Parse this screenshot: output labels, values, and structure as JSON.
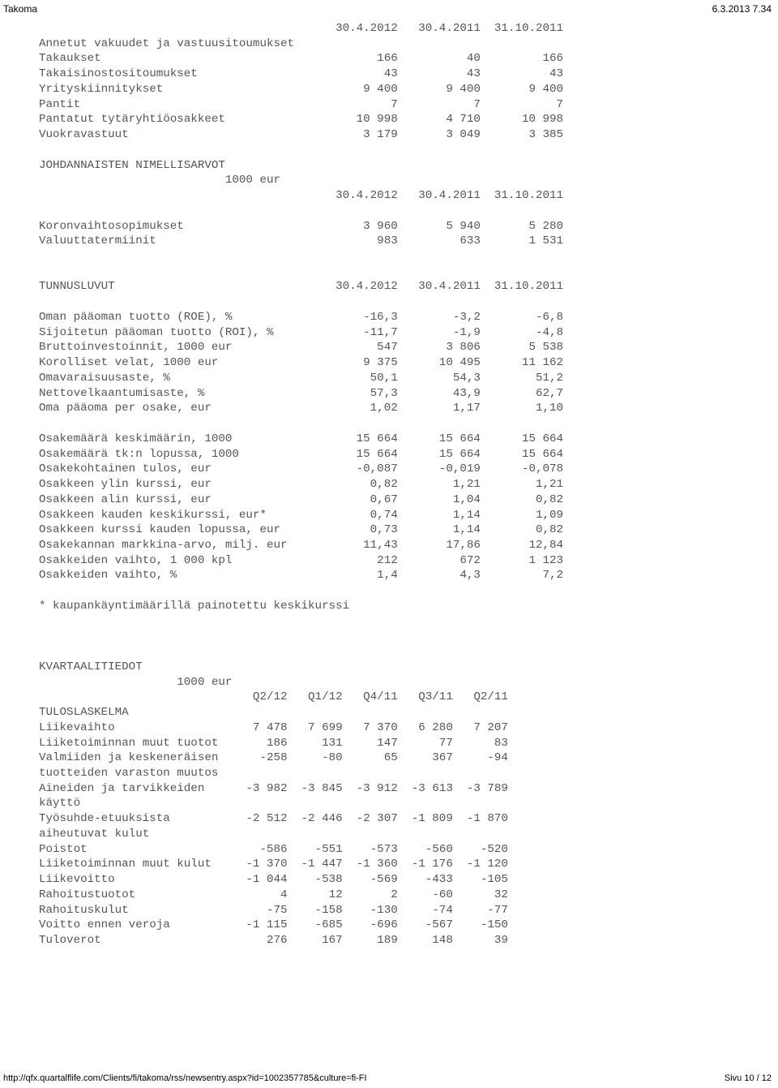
{
  "header": {
    "left": "Takoma",
    "right": "6.3.2013 7.34"
  },
  "footer": {
    "url": "http://qfx.quartalflife.com/Clients/fi/takoma/rss/newsentry.aspx?id=1002357785&culture=fi-FI",
    "page": "Sivu 10 / 12"
  },
  "section1": {
    "date_cols": [
      "30.4.2012",
      "30.4.2011",
      "31.10.2011"
    ],
    "heading": "Annetut vakuudet ja vastuusitoumukset",
    "rows": [
      {
        "label": "Takaukset",
        "v": [
          "166",
          "40",
          "166"
        ]
      },
      {
        "label": "Takaisinostositoumukset",
        "v": [
          "43",
          "43",
          "43"
        ]
      },
      {
        "label": "Yrityskiinnitykset",
        "v": [
          "9 400",
          "9 400",
          "9 400"
        ]
      },
      {
        "label": "Pantit",
        "v": [
          "7",
          "7",
          "7"
        ]
      },
      {
        "label": "Pantatut tytäryhtiöosakkeet",
        "v": [
          "10 998",
          "4 710",
          "10 998"
        ]
      },
      {
        "label": "Vuokravastuut",
        "v": [
          "3 179",
          "3 049",
          "3 385"
        ]
      }
    ]
  },
  "section2": {
    "heading": "JOHDANNAISTEN NIMELLISARVOT",
    "unit": "1000 eur",
    "date_cols": [
      "30.4.2012",
      "30.4.2011",
      "31.10.2011"
    ],
    "rows": [
      {
        "label": "Koronvaihtosopimukset",
        "v": [
          "3 960",
          "5 940",
          "5 280"
        ]
      },
      {
        "label": "Valuuttatermiinit",
        "v": [
          "983",
          "633",
          "1 531"
        ]
      }
    ]
  },
  "section3": {
    "heading": "TUNNUSLUVUT",
    "date_cols": [
      "30.4.2012",
      "30.4.2011",
      "31.10.2011"
    ],
    "rowsA": [
      {
        "label": "Oman pääoman tuotto (ROE), %",
        "v": [
          "-16,3",
          "-3,2",
          "-6,8"
        ]
      },
      {
        "label": "Sijoitetun pääoman tuotto (ROI), %",
        "v": [
          "-11,7",
          "-1,9",
          "-4,8"
        ]
      },
      {
        "label": "Bruttoinvestoinnit, 1000 eur",
        "v": [
          "547",
          "3 806",
          "5 538"
        ]
      },
      {
        "label": "Korolliset velat, 1000 eur",
        "v": [
          "9 375",
          "10 495",
          "11 162"
        ]
      },
      {
        "label": "Omavaraisuusaste, %",
        "v": [
          "50,1",
          "54,3",
          "51,2"
        ]
      },
      {
        "label": "Nettovelkaantumisaste, %",
        "v": [
          "57,3",
          "43,9",
          "62,7"
        ]
      },
      {
        "label": "Oma pääoma per osake, eur",
        "v": [
          "1,02",
          "1,17",
          "1,10"
        ]
      }
    ],
    "rowsB": [
      {
        "label": "Osakemäärä keskimäärin, 1000",
        "v": [
          "15 664",
          "15 664",
          "15 664"
        ]
      },
      {
        "label": "Osakemäärä tk:n lopussa, 1000",
        "v": [
          "15 664",
          "15 664",
          "15 664"
        ]
      },
      {
        "label": "Osakekohtainen tulos, eur",
        "v": [
          "-0,087",
          "-0,019",
          "-0,078"
        ]
      },
      {
        "label": "Osakkeen ylin kurssi, eur",
        "v": [
          "0,82",
          "1,21",
          "1,21"
        ]
      },
      {
        "label": "Osakkeen alin kurssi, eur",
        "v": [
          "0,67",
          "1,04",
          "0,82"
        ]
      },
      {
        "label": "Osakkeen kauden keskikurssi, eur*",
        "v": [
          "0,74",
          "1,14",
          "1,09"
        ]
      },
      {
        "label": "Osakkeen kurssi kauden lopussa, eur",
        "v": [
          "0,73",
          "1,14",
          "0,82"
        ]
      },
      {
        "label": "Osakekannan markkina-arvo, milj. eur",
        "v": [
          "11,43",
          "17,86",
          "12,84"
        ]
      },
      {
        "label": "Osakkeiden vaihto, 1 000 kpl",
        "v": [
          "212",
          "672",
          "1 123"
        ]
      },
      {
        "label": "Osakkeiden vaihto, %",
        "v": [
          "1,4",
          "4,3",
          "7,2"
        ]
      }
    ],
    "footnote": "* kaupankäyntimäärillä painotettu keskikurssi"
  },
  "section4": {
    "heading": "KVARTAALITIEDOT",
    "unit": "1000 eur",
    "cols": [
      "Q2/12",
      "Q1/12",
      "Q4/11",
      "Q3/11",
      "Q2/11"
    ],
    "subheading": "TULOSLASKELMA",
    "rows": [
      {
        "label": "Liikevaihto",
        "v": [
          "7 478",
          "7 699",
          "7 370",
          "6 280",
          "7 207"
        ]
      },
      {
        "label": "Liiketoiminnan muut tuotot",
        "v": [
          "186",
          "131",
          "147",
          "77",
          "83"
        ]
      },
      {
        "label": "Valmiiden ja keskeneräisen",
        "v": [
          "-258",
          "-80",
          "65",
          "367",
          "-94"
        ]
      },
      {
        "label2": "tuotteiden varaston muutos"
      },
      {
        "label": "Aineiden ja tarvikkeiden",
        "v": [
          "-3 982",
          "-3 845",
          "-3 912",
          "-3 613",
          "-3 789"
        ]
      },
      {
        "label2": "käyttö"
      },
      {
        "label": "Työsuhde-etuuksista",
        "v": [
          "-2 512",
          "-2 446",
          "-2 307",
          "-1 809",
          "-1 870"
        ]
      },
      {
        "label2": "aiheutuvat kulut"
      },
      {
        "label": "Poistot",
        "v": [
          "-586",
          "-551",
          "-573",
          "-560",
          "-520"
        ]
      },
      {
        "label": "Liiketoiminnan muut kulut",
        "v": [
          "-1 370",
          "-1 447",
          "-1 360",
          "-1 176",
          "-1 120"
        ]
      },
      {
        "label": "Liikevoitto",
        "v": [
          "-1 044",
          "-538",
          "-569",
          "-433",
          "-105"
        ]
      },
      {
        "label": "Rahoitustuotot",
        "v": [
          "4",
          "12",
          "2",
          "-60",
          "32"
        ]
      },
      {
        "label": "Rahoituskulut",
        "v": [
          "-75",
          "-158",
          "-130",
          "-74",
          "-77"
        ]
      },
      {
        "label": "Voitto ennen veroja",
        "v": [
          "-1 115",
          "-685",
          "-696",
          "-567",
          "-150"
        ]
      },
      {
        "label": "Tuloverot",
        "v": [
          "276",
          "167",
          "189",
          "148",
          "39"
        ]
      }
    ]
  },
  "layout": {
    "labelWidth": 40,
    "col3Width": 12,
    "q_labelWidth": 28,
    "q_colWidth": 8
  }
}
